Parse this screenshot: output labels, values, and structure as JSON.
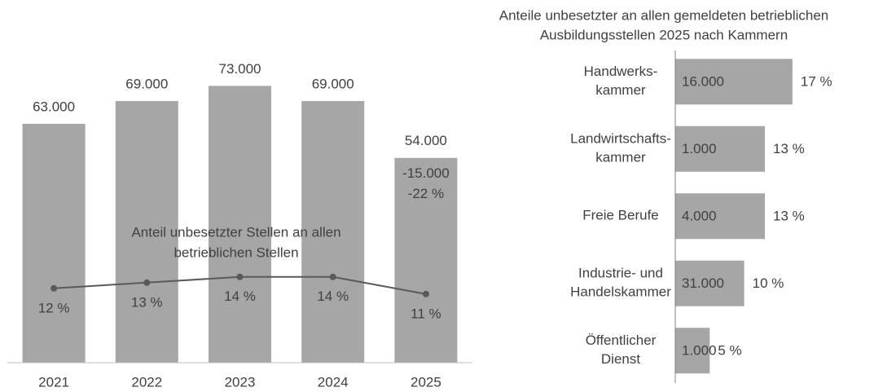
{
  "chart_data": [
    {
      "type": "bar",
      "categories": [
        "2021",
        "2022",
        "2023",
        "2024",
        "2025"
      ],
      "values": [
        63000,
        69000,
        73000,
        69000,
        54000
      ],
      "value_labels": [
        "63.000",
        "69.000",
        "73.000",
        "69.000",
        "54.000"
      ],
      "color": "#a6a6a6",
      "ylim": [
        0,
        95000
      ],
      "line": {
        "axis": "y2",
        "color": "#595959",
        "values": [
          12,
          13,
          14,
          14,
          11
        ],
        "value_labels": [
          "12 %",
          "13 %",
          "14 %",
          "14 %",
          "11 %"
        ]
      },
      "y2lim": [
        -1,
        62
      ],
      "line_label": [
        "Anteil unbesetzter Stellen an allen",
        "betrieblichen Stellen"
      ],
      "annotations": [
        "-15.000",
        "-22 %"
      ]
    },
    {
      "type": "hbar",
      "title": [
        "Anteile unbesetzter an allen gemeldeten betrieblichen",
        "Ausbildungsstellen 2025 nach Kammern"
      ],
      "categories": [
        [
          "Handwerks-",
          "kammer"
        ],
        [
          "Landwirtschafts-",
          "kammer"
        ],
        [
          "Freie Berufe"
        ],
        [
          "Industrie- und",
          "Handelskammer"
        ],
        [
          "Öffentlicher",
          "Dienst"
        ]
      ],
      "values": [
        17,
        13,
        13,
        10,
        5
      ],
      "value_labels": [
        "17 %",
        "13 %",
        "13 %",
        "10 %",
        "5 %"
      ],
      "counts": [
        16000,
        1000,
        4000,
        31000,
        1000
      ],
      "count_labels": [
        "16.000",
        "1.000",
        "4.000",
        "31.000",
        "1.000"
      ],
      "color": "#a6a6a6",
      "xlim": [
        0,
        28
      ]
    }
  ]
}
